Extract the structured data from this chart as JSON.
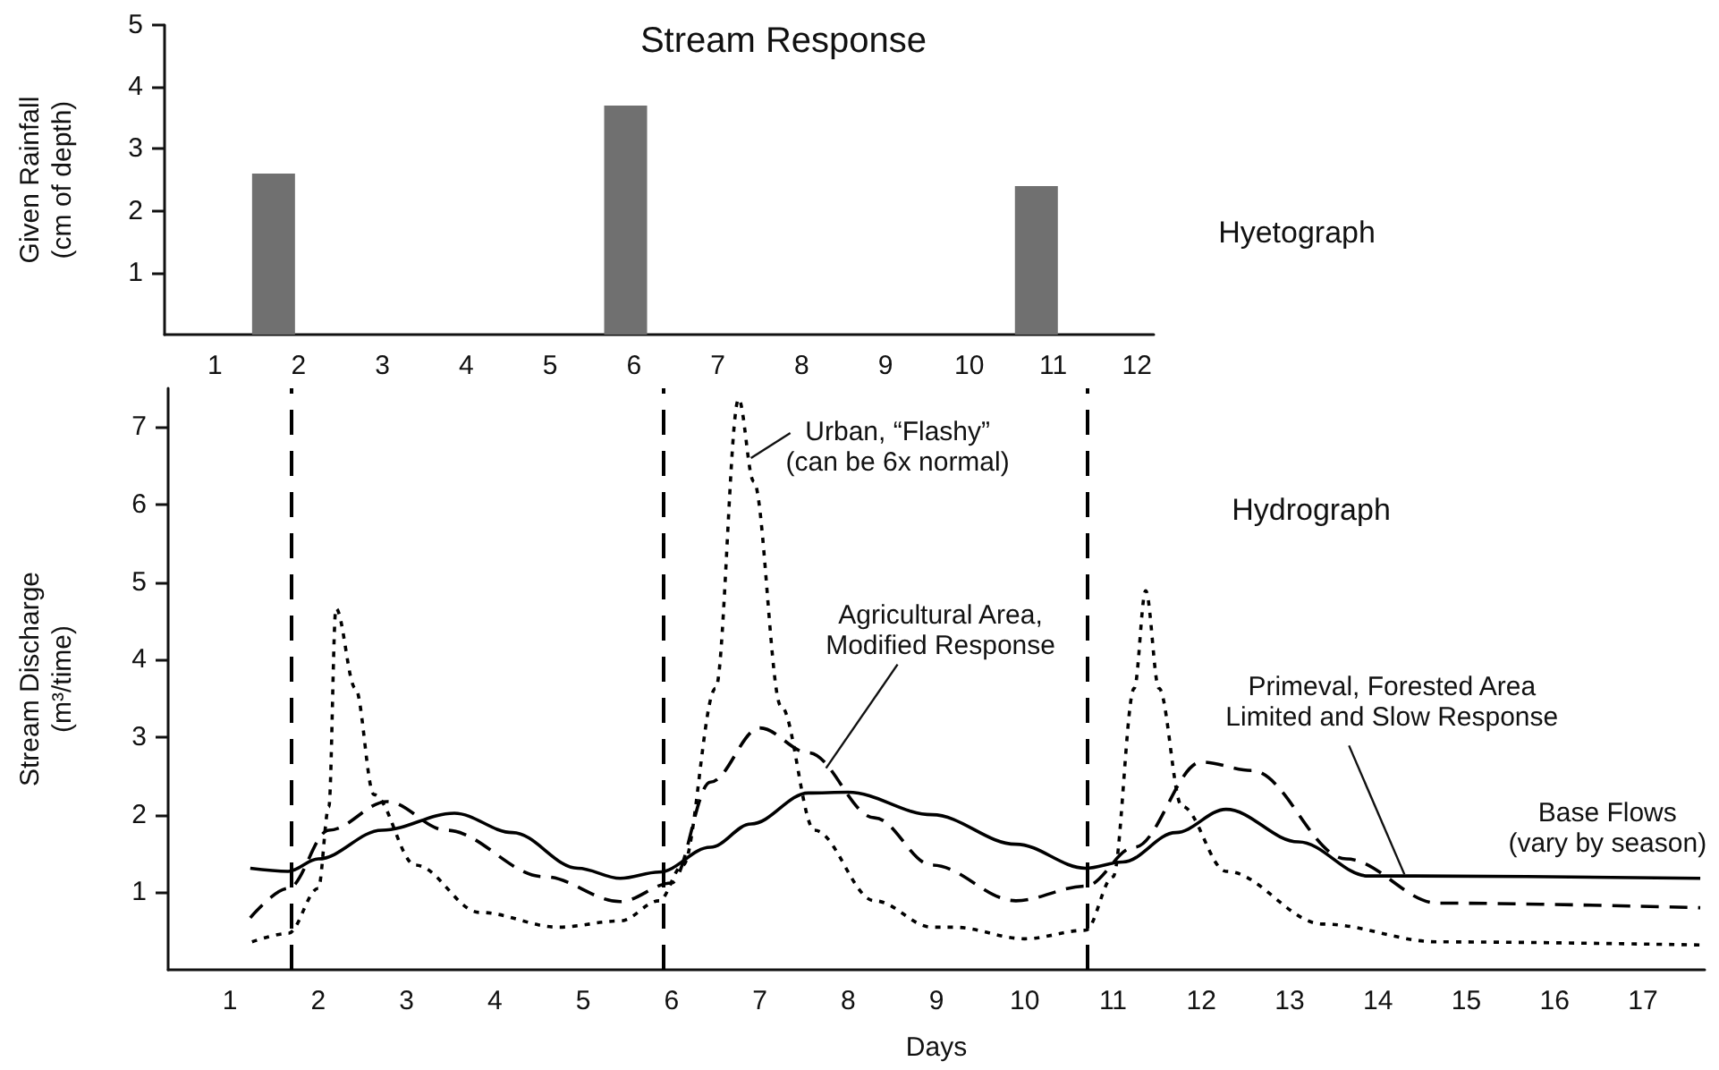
{
  "chart_data": [
    {
      "type": "bar",
      "title": "Stream Response",
      "ylabel": "Given Rainfall\n(cm of depth)",
      "x": [
        1.7,
        5.9,
        10.8
      ],
      "values": [
        2.6,
        3.7,
        2.4
      ],
      "color": "#707070",
      "xlim": [
        0.4,
        12.2
      ],
      "xticks": [
        1,
        2,
        3,
        4,
        5,
        6,
        7,
        8,
        9,
        10,
        11,
        12
      ],
      "ylim": [
        0,
        5
      ],
      "yticks": [
        1,
        2,
        3,
        4,
        5
      ],
      "annotations": [
        "Hyetograph"
      ]
    },
    {
      "type": "line",
      "xlabel": "Days",
      "ylabel": "Stream Discharge\n(m³/time)",
      "xlim": [
        0.3,
        17.7
      ],
      "xticks": [
        1,
        2,
        3,
        4,
        5,
        6,
        7,
        8,
        9,
        10,
        11,
        12,
        13,
        14,
        15,
        16,
        17
      ],
      "ylim": [
        0,
        7.5
      ],
      "yticks": [
        1,
        2,
        3,
        4,
        5,
        6,
        7
      ],
      "marker": "none",
      "ref_lines": [
        {
          "axis": "x",
          "value": 1.7,
          "color": "#000000",
          "line_style": "dashed"
        },
        {
          "axis": "x",
          "value": 5.9,
          "color": "#000000",
          "line_style": "dashed"
        },
        {
          "axis": "x",
          "value": 10.7,
          "color": "#000000",
          "line_style": "dashed"
        }
      ],
      "annotations": [
        "Hydrograph",
        {
          "text": "Urban, “Flashy”\n(can be 6x normal)",
          "x": 6.9,
          "y": 6.6
        },
        {
          "text": "Agricultural Area,\nModified Response",
          "x": 7.75,
          "y": 2.6
        },
        {
          "text": "Primeval, Forested Area\nLimited and Slow Response",
          "x": 14.3,
          "y": 1.23
        },
        {
          "text": "Base Flows\n(vary by season)",
          "x": 16.7,
          "y": 1.18
        }
      ],
      "series": [
        {
          "color": "#000000",
          "line_style": "solid",
          "x": [
            1.23,
            1.66,
            2.0,
            2.72,
            3.54,
            4.2,
            4.94,
            5.42,
            5.86,
            6.44,
            6.9,
            7.55,
            8.0,
            8.95,
            9.9,
            10.69,
            11.11,
            11.71,
            12.28,
            13.1,
            13.89,
            14.42,
            17.65
          ],
          "values": [
            1.31,
            1.27,
            1.43,
            1.8,
            2.02,
            1.77,
            1.31,
            1.18,
            1.26,
            1.58,
            1.88,
            2.28,
            2.29,
            2.0,
            1.62,
            1.31,
            1.39,
            1.77,
            2.07,
            1.65,
            1.21,
            1.21,
            1.18
          ]
        },
        {
          "color": "#000000",
          "line_style": "dashed",
          "x": [
            1.23,
            1.66,
            2.12,
            2.78,
            3.45,
            4.56,
            5.42,
            6.0,
            6.44,
            7.0,
            7.55,
            8.3,
            8.95,
            9.9,
            10.69,
            11.24,
            12.0,
            12.57,
            13.64,
            14.68,
            17.65
          ],
          "values": [
            0.67,
            1.05,
            1.8,
            2.17,
            1.8,
            1.2,
            0.88,
            1.12,
            2.42,
            3.12,
            2.8,
            1.96,
            1.35,
            0.89,
            1.08,
            1.58,
            2.68,
            2.57,
            1.43,
            0.86,
            0.8
          ]
        },
        {
          "color": "#000000",
          "line_style": "dotted",
          "x": [
            1.25,
            1.66,
            2.0,
            2.12,
            2.2,
            2.42,
            2.63,
            3.1,
            3.83,
            4.72,
            5.42,
            5.86,
            6.13,
            6.5,
            6.76,
            6.93,
            7.24,
            7.62,
            8.3,
            8.95,
            9.2,
            10.0,
            10.69,
            11.0,
            11.24,
            11.37,
            11.52,
            11.78,
            12.28,
            13.38,
            14.68,
            17.65
          ],
          "values": [
            0.36,
            0.47,
            1.05,
            2.1,
            4.66,
            3.63,
            2.26,
            1.35,
            0.74,
            0.55,
            0.63,
            0.89,
            1.35,
            3.63,
            7.36,
            6.3,
            3.4,
            1.8,
            0.89,
            0.55,
            0.55,
            0.4,
            0.51,
            1.2,
            3.63,
            4.89,
            3.63,
            2.11,
            1.27,
            0.59,
            0.36,
            0.32
          ]
        }
      ]
    }
  ]
}
